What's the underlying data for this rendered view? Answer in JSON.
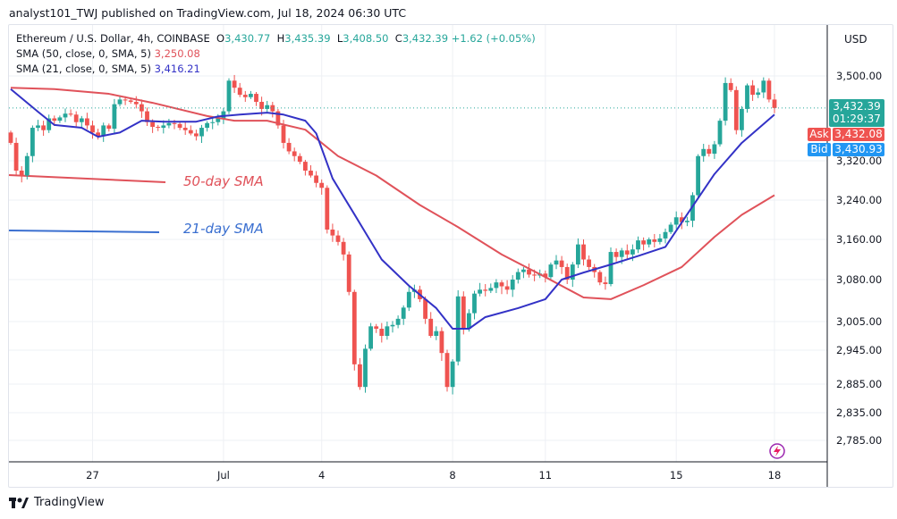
{
  "header": {
    "published": "analyst101_TWJ published on TradingView.com, Jul 18, 2024 06:30 UTC"
  },
  "legend": {
    "symbol": "Ethereum / U.S. Dollar, 4h, COINBASE",
    "o_label": "O",
    "o": "3,430.77",
    "h_label": "H",
    "h": "3,435.39",
    "l_label": "L",
    "l": "3,408.50",
    "c_label": "C",
    "c": "3,432.39",
    "change": "+1.62 (+0.05%)",
    "sma50_label": "SMA (50, close, 0, SMA, 5)",
    "sma50_value": "3,250.08",
    "sma21_label": "SMA (21, close, 0, SMA, 5)",
    "sma21_value": "3,416.21"
  },
  "currency": "USD",
  "price_tag": {
    "price": "3,432.39",
    "countdown": "01:29:37",
    "ask_label": "Ask",
    "ask": "3,432.08",
    "bid_label": "Bid",
    "bid": "3,430.93"
  },
  "annotations": {
    "sma50": "50-day SMA",
    "sma21": "21-day SMA"
  },
  "footer": {
    "brand": "TradingView"
  },
  "colors": {
    "up": "#26a69a",
    "down": "#ef5350",
    "sma50": "#e0525a",
    "sma21": "#3332c6",
    "ask": "#ef5350",
    "bid": "#2196f3"
  },
  "chart_data": {
    "type": "candlestick",
    "y_ticks": [
      3500,
      3320,
      3240,
      3160,
      3080,
      3005,
      2945,
      2885,
      2835,
      2785
    ],
    "y_tick_labels": [
      "3,500.00",
      "3,320.00",
      "3,240.00",
      "3,160.00",
      "3,080.00",
      "3,005.00",
      "2,945.00",
      "2,885.00",
      "2,835.00",
      "2,785.00"
    ],
    "x_ticks": [
      {
        "label": "27",
        "index": 15
      },
      {
        "label": "Jul",
        "index": 39
      },
      {
        "label": "4",
        "index": 57
      },
      {
        "label": "8",
        "index": 81
      },
      {
        "label": "11",
        "index": 98
      },
      {
        "label": "15",
        "index": 122
      },
      {
        "label": "18",
        "index": 140
      }
    ],
    "first_open": 3380,
    "closes": [
      3358,
      3300,
      3290,
      3330,
      3390,
      3395,
      3385,
      3410,
      3405,
      3412,
      3420,
      3418,
      3402,
      3410,
      3395,
      3380,
      3372,
      3395,
      3388,
      3440,
      3450,
      3448,
      3445,
      3440,
      3425,
      3402,
      3392,
      3390,
      3395,
      3400,
      3398,
      3390,
      3385,
      3378,
      3372,
      3390,
      3400,
      3402,
      3410,
      3425,
      3490,
      3475,
      3460,
      3455,
      3462,
      3445,
      3430,
      3438,
      3425,
      3395,
      3358,
      3340,
      3330,
      3318,
      3300,
      3290,
      3275,
      3265,
      3180,
      3168,
      3155,
      3130,
      3058,
      2920,
      2880,
      2948,
      2995,
      2990,
      2975,
      2995,
      2998,
      3010,
      3030,
      3058,
      3062,
      3045,
      3010,
      2975,
      2985,
      2940,
      2880,
      2925,
      3050,
      2990,
      3020,
      3055,
      3062,
      3060,
      3065,
      3075,
      3068,
      3062,
      3080,
      3095,
      3100,
      3090,
      3088,
      3092,
      3085,
      3110,
      3118,
      3105,
      3080,
      3110,
      3150,
      3120,
      3105,
      3095,
      3075,
      3072,
      3135,
      3125,
      3138,
      3130,
      3140,
      3158,
      3150,
      3160,
      3155,
      3162,
      3175,
      3190,
      3205,
      3195,
      3198,
      3250,
      3330,
      3345,
      3335,
      3355,
      3405,
      3485,
      3470,
      3385,
      3430,
      3480,
      3460,
      3465,
      3490,
      3450,
      3432
    ],
    "sma50": [
      [
        0,
        3475
      ],
      [
        8,
        3472
      ],
      [
        18,
        3462
      ],
      [
        26,
        3443
      ],
      [
        36,
        3415
      ],
      [
        41,
        3405
      ],
      [
        47,
        3405
      ],
      [
        54,
        3386
      ],
      [
        60,
        3330
      ],
      [
        67,
        3290
      ],
      [
        75,
        3230
      ],
      [
        82,
        3185
      ],
      [
        90,
        3130
      ],
      [
        98,
        3085
      ],
      [
        105,
        3048
      ],
      [
        110,
        3045
      ],
      [
        116,
        3070
      ],
      [
        123,
        3105
      ],
      [
        129,
        3165
      ],
      [
        134,
        3210
      ],
      [
        140,
        3250
      ]
    ],
    "sma21": [
      [
        0,
        3472
      ],
      [
        5,
        3424
      ],
      [
        8,
        3396
      ],
      [
        13,
        3390
      ],
      [
        16,
        3371
      ],
      [
        20,
        3380
      ],
      [
        24,
        3405
      ],
      [
        28,
        3403
      ],
      [
        34,
        3403
      ],
      [
        38,
        3414
      ],
      [
        42,
        3418
      ],
      [
        47,
        3422
      ],
      [
        50,
        3418
      ],
      [
        54,
        3405
      ],
      [
        56,
        3378
      ],
      [
        59,
        3284
      ],
      [
        63,
        3211
      ],
      [
        68,
        3120
      ],
      [
        73,
        3069
      ],
      [
        78,
        3029
      ],
      [
        81,
        2990
      ],
      [
        84,
        2990
      ],
      [
        87,
        3013
      ],
      [
        93,
        3029
      ],
      [
        98,
        3045
      ],
      [
        101,
        3080
      ],
      [
        105,
        3094
      ],
      [
        110,
        3110
      ],
      [
        115,
        3127
      ],
      [
        120,
        3145
      ],
      [
        124,
        3211
      ],
      [
        129,
        3293
      ],
      [
        134,
        3358
      ],
      [
        140,
        3418
      ]
    ]
  }
}
